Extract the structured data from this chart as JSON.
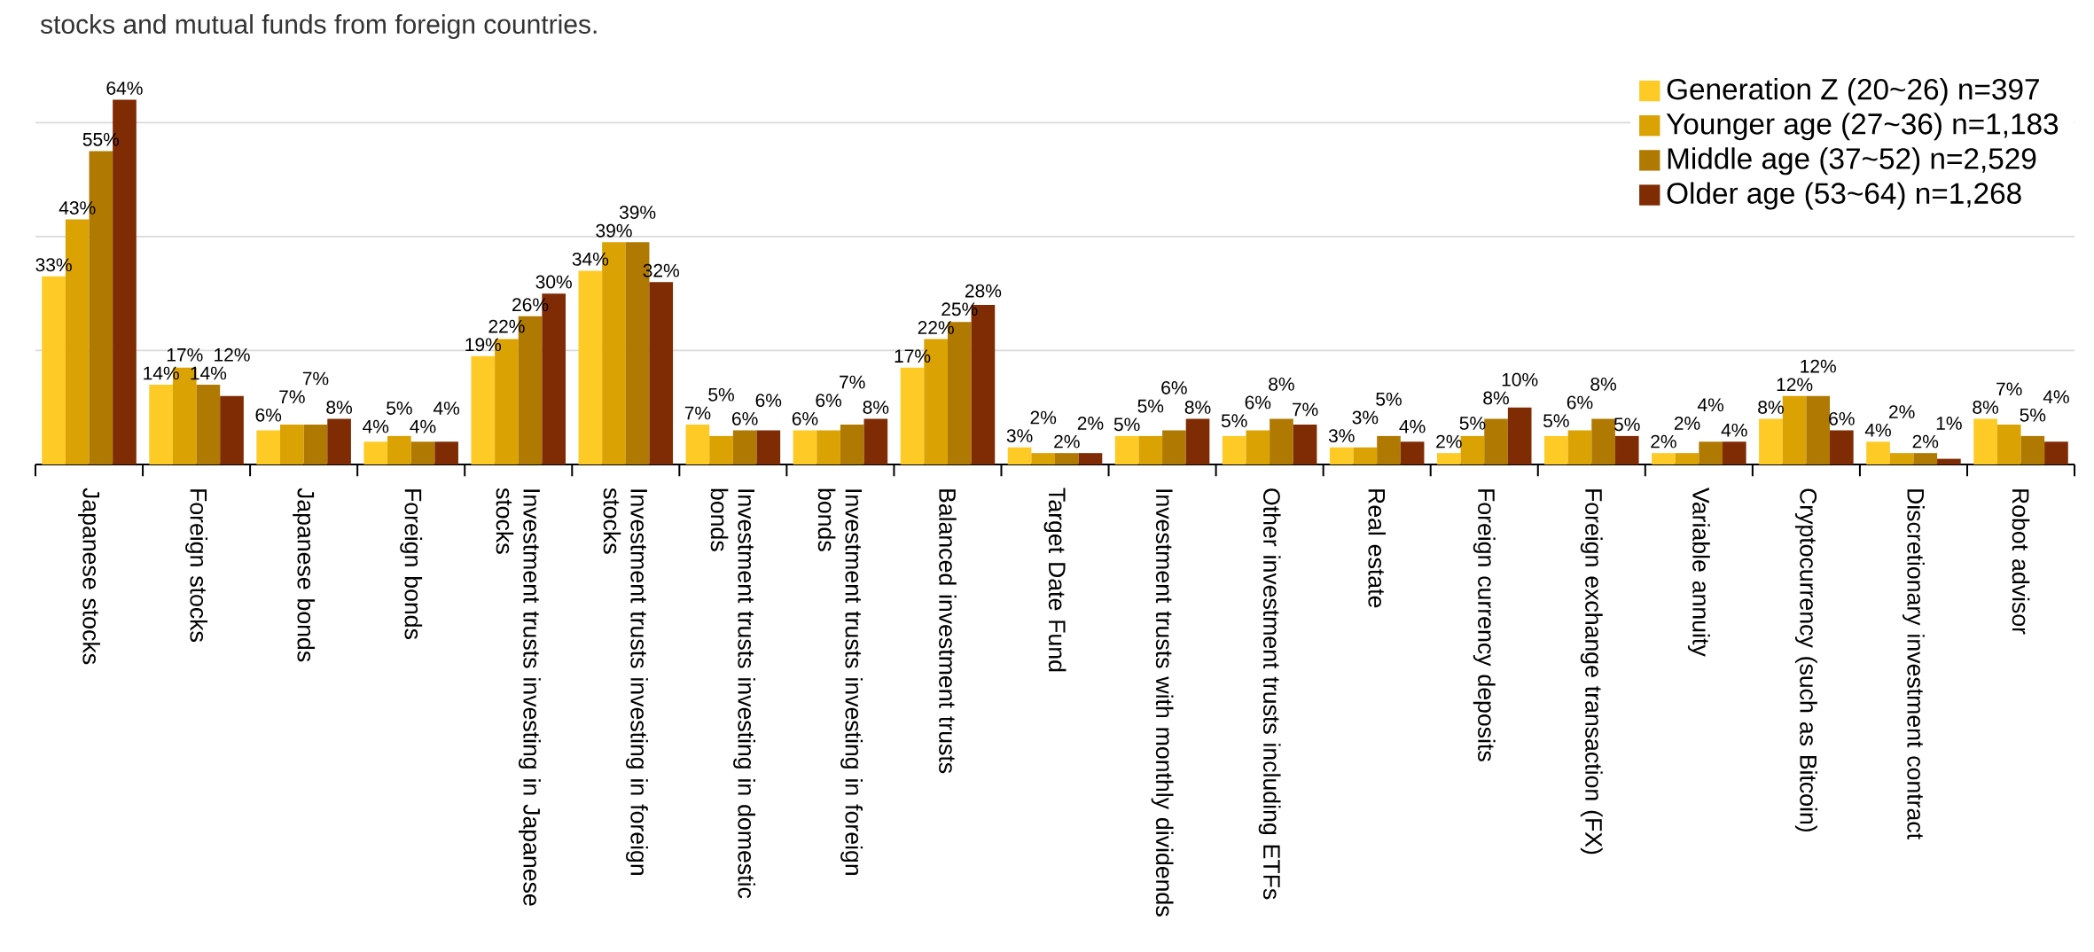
{
  "chart_data": {
    "type": "bar",
    "subtitle": "stocks and mutual funds from foreign countries.",
    "categories": [
      "Japanese stocks",
      "Foreign stocks",
      "Japanese bonds",
      "Foreign bonds",
      "Investment trusts investing in Japanese stocks",
      "Investment trusts investing in foreign stocks",
      "Investment trusts investing in domestic bonds",
      "Investment trusts investing in foreign bonds",
      "Balanced investment trusts",
      "Target Date Fund",
      "Investment trusts with monthly dividends",
      "Other investment trusts including ETFs",
      "Real estate",
      "Foreign currency deposits",
      "Foreign exchange transaction (FX)",
      "Variable annuity",
      "Cryptocurrency (such as Bitcoin)",
      "Discretionary investment contract",
      "Robot advisor"
    ],
    "series": [
      {
        "name": "Generation Z (20~26) n=397",
        "color": "#fdca26",
        "values": [
          33,
          14,
          6,
          4,
          19,
          34,
          7,
          6,
          17,
          3,
          5,
          5,
          3,
          2,
          5,
          2,
          8,
          4,
          8
        ],
        "value_labels": [
          "33%",
          "14%",
          "6%",
          "4%",
          "19%",
          "34%",
          "7%",
          "6%",
          "17%",
          "3%",
          "5%",
          "5%",
          "3%",
          "2%",
          "5%",
          "2%",
          "8%",
          "4%",
          "8%"
        ]
      },
      {
        "name": "Younger age (27~36) n=1,183",
        "color": "#dba203",
        "values": [
          43,
          17,
          7,
          5,
          22,
          39,
          5,
          6,
          22,
          2,
          5,
          6,
          3,
          5,
          6,
          2,
          12,
          2,
          7
        ],
        "value_labels": [
          "43%",
          "17%",
          "7%",
          "5%",
          "22%",
          "39%",
          "5%",
          "6%",
          "22%",
          "2%",
          "5%",
          "6%",
          "3%",
          "5%",
          "6%",
          "2%",
          "12%",
          "2%",
          "7%"
        ]
      },
      {
        "name": "Middle age (37~52) n=2,529",
        "color": "#b07a02",
        "values": [
          55,
          14,
          7,
          4,
          26,
          39,
          6,
          7,
          25,
          2,
          6,
          8,
          5,
          8,
          8,
          4,
          12,
          2,
          5
        ],
        "value_labels": [
          "55%",
          "14%",
          "7%",
          "4%",
          "26%",
          "39%",
          "6%",
          "7%",
          "25%",
          "2%",
          "6%",
          "8%",
          "5%",
          "8%",
          "8%",
          "4%",
          "12%",
          "2%",
          "5%"
        ]
      },
      {
        "name": "Older age (53~64) n=1,268",
        "color": "#7f2b03",
        "values": [
          64,
          12,
          8,
          4,
          30,
          32,
          6,
          8,
          28,
          2,
          8,
          7,
          4,
          10,
          5,
          4,
          6,
          1,
          4
        ],
        "value_labels": [
          "64%",
          "12%",
          "8%",
          "4%",
          "30%",
          "32%",
          "6%",
          "8%",
          "28%",
          "2%",
          "8%",
          "7%",
          "4%",
          "10%",
          "5%",
          "4%",
          "6%",
          "1%",
          "4%"
        ]
      }
    ],
    "ylim": [
      0,
      70
    ],
    "yticks": [
      {
        "value": 0,
        "label": null
      },
      {
        "value": 20,
        "label": null
      },
      {
        "value": 40,
        "label": null
      },
      {
        "value": 60,
        "label": null
      }
    ],
    "grid": "y",
    "legend": "top right",
    "tick_labels": "x"
  }
}
